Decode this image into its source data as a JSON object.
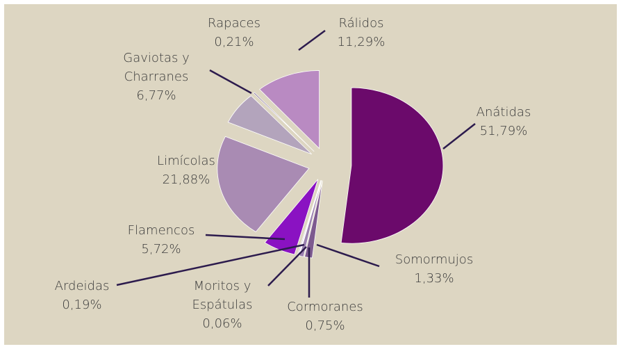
{
  "chart_data": {
    "type": "pie",
    "categories": [
      "Anátidas",
      "Somormujos",
      "Cormoranes",
      "Moritos y Espátulas",
      "Ardeidas",
      "Flamencos",
      "Limícolas",
      "Gaviotas y Charranes",
      "Rapaces",
      "Rálidos"
    ],
    "values": [
      51.79,
      1.33,
      0.75,
      0.06,
      0.19,
      5.72,
      21.88,
      6.77,
      0.21,
      11.29
    ],
    "value_labels": [
      "51,79%",
      "1,33%",
      "0,75%",
      "0,06%",
      "0,19%",
      "5,72%",
      "21,88%",
      "6,77%",
      "0,21%",
      "11,29%"
    ],
    "colors": [
      "#6b0a6b",
      "#7d5a8f",
      "#9c82b0",
      "#b6a6c8",
      "#c4b4d6",
      "#8a12c2",
      "#a98bb3",
      "#b3a4bc",
      "#6e5585",
      "#b98ac2"
    ]
  }
}
